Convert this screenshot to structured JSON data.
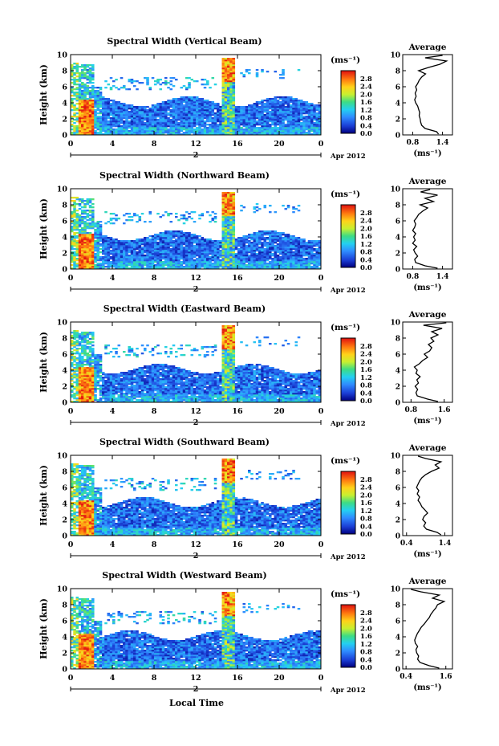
{
  "figure": {
    "xlabel": "Local Time",
    "date_label": "Apr 2012",
    "day_label": "2"
  },
  "chart_data": [
    {
      "type": "heatmap",
      "title": "Spectral Width (Vertical Beam)",
      "ylabel": "Height (km)",
      "x_ticks": [
        "0",
        "4",
        "8",
        "12",
        "16",
        "20",
        "0"
      ],
      "y_ticks": [
        "0",
        "2",
        "4",
        "6",
        "8",
        "10"
      ],
      "xlim": [
        0,
        24
      ],
      "ylim": [
        0,
        10
      ],
      "colorbar_unit": "(ms⁻¹)",
      "colorbar_ticks": [
        "0.0",
        "0.4",
        "0.8",
        "1.2",
        "1.6",
        "2.0",
        "2.4",
        "2.8"
      ],
      "colorbar_range": [
        0,
        3.2
      ],
      "avg": {
        "title": "Average",
        "xlabel": "(ms⁻¹)",
        "x_ticks": [
          "0.8",
          "1.4"
        ],
        "xlim": [
          0.6,
          1.6
        ],
        "y_ticks": [
          "0",
          "2",
          "4",
          "6",
          "8",
          "10"
        ],
        "ylim": [
          0,
          10
        ],
        "heights": [
          0.1,
          0.4,
          0.8,
          1.2,
          1.6,
          2.0,
          2.4,
          2.8,
          3.2,
          3.6,
          4.0,
          4.4,
          4.8,
          5.2,
          5.6,
          6.0,
          6.4,
          6.8,
          7.2,
          7.6,
          8.0,
          8.4,
          8.8,
          9.2,
          9.6,
          9.9
        ],
        "values": [
          1.32,
          1.28,
          1.05,
          0.98,
          0.96,
          0.95,
          0.93,
          0.94,
          0.92,
          0.9,
          0.86,
          0.84,
          0.87,
          0.85,
          0.88,
          0.86,
          0.9,
          0.93,
          0.98,
          1.06,
          0.92,
          1.12,
          1.35,
          1.48,
          1.05,
          1.4
        ]
      }
    },
    {
      "type": "heatmap",
      "title": "Spectral Width (Northward Beam)",
      "ylabel": "Height (km)",
      "x_ticks": [
        "0",
        "4",
        "8",
        "12",
        "16",
        "20",
        "0"
      ],
      "y_ticks": [
        "0",
        "2",
        "4",
        "6",
        "8",
        "10"
      ],
      "xlim": [
        0,
        24
      ],
      "ylim": [
        0,
        10
      ],
      "colorbar_unit": "(ms⁻¹)",
      "colorbar_ticks": [
        "0.0",
        "0.4",
        "0.8",
        "1.2",
        "1.6",
        "2.0",
        "2.4",
        "2.8"
      ],
      "colorbar_range": [
        0,
        3.2
      ],
      "avg": {
        "title": "Average",
        "xlabel": "(ms⁻¹)",
        "x_ticks": [
          "0.8",
          "1.4"
        ],
        "xlim": [
          0.6,
          1.6
        ],
        "y_ticks": [
          "0",
          "2",
          "4",
          "6",
          "8",
          "10"
        ],
        "ylim": [
          0,
          10
        ],
        "heights": [
          0.1,
          0.4,
          0.8,
          1.2,
          1.6,
          2.0,
          2.4,
          2.8,
          3.2,
          3.6,
          4.0,
          4.4,
          4.8,
          5.2,
          5.6,
          6.0,
          6.4,
          6.8,
          7.2,
          7.6,
          8.0,
          8.4,
          8.8,
          9.2,
          9.6,
          9.9
        ],
        "values": [
          1.3,
          1.05,
          0.86,
          0.84,
          0.9,
          0.85,
          0.82,
          0.88,
          0.8,
          0.85,
          0.82,
          0.86,
          0.8,
          0.84,
          0.86,
          0.83,
          0.88,
          0.92,
          1.0,
          1.1,
          0.95,
          1.22,
          1.05,
          1.3,
          0.96,
          1.15
        ]
      }
    },
    {
      "type": "heatmap",
      "title": "Spectral Width (Eastward Beam)",
      "ylabel": "Height (km)",
      "x_ticks": [
        "0",
        "4",
        "8",
        "12",
        "16",
        "20",
        "0"
      ],
      "y_ticks": [
        "0",
        "2",
        "4",
        "6",
        "8",
        "10"
      ],
      "xlim": [
        0,
        24
      ],
      "ylim": [
        0,
        10
      ],
      "colorbar_unit": "(ms⁻¹)",
      "colorbar_ticks": [
        "0.0",
        "0.4",
        "0.8",
        "1.2",
        "1.6",
        "2.0",
        "2.4",
        "2.8"
      ],
      "colorbar_range": [
        0,
        3.2
      ],
      "avg": {
        "title": "Average",
        "xlabel": "(ms⁻¹)",
        "x_ticks": [
          "0.8",
          "1.6"
        ],
        "xlim": [
          0.6,
          1.8
        ],
        "y_ticks": [
          "0",
          "2",
          "4",
          "6",
          "8",
          "10"
        ],
        "ylim": [
          0,
          10
        ],
        "heights": [
          0.1,
          0.4,
          0.8,
          1.2,
          1.6,
          2.0,
          2.4,
          2.8,
          3.2,
          3.6,
          4.0,
          4.4,
          4.8,
          5.2,
          5.6,
          6.0,
          6.4,
          6.8,
          7.2,
          7.6,
          8.0,
          8.4,
          8.8,
          9.2,
          9.6,
          9.9
        ],
        "values": [
          1.45,
          1.2,
          0.95,
          0.92,
          0.96,
          0.9,
          0.98,
          0.94,
          1.02,
          0.92,
          0.95,
          0.88,
          1.0,
          1.08,
          1.2,
          1.12,
          1.25,
          1.3,
          1.22,
          1.35,
          1.28,
          1.45,
          1.3,
          1.55,
          1.1,
          1.65
        ]
      }
    },
    {
      "type": "heatmap",
      "title": "Spectral Width (Southward Beam)",
      "ylabel": "Height (km)",
      "x_ticks": [
        "0",
        "4",
        "8",
        "12",
        "16",
        "20",
        "0"
      ],
      "y_ticks": [
        "0",
        "2",
        "4",
        "6",
        "8",
        "10"
      ],
      "xlim": [
        0,
        24
      ],
      "ylim": [
        0,
        10
      ],
      "colorbar_unit": "(ms⁻¹)",
      "colorbar_ticks": [
        "0.0",
        "0.4",
        "0.8",
        "1.2",
        "1.6",
        "2.0",
        "2.4",
        "2.8"
      ],
      "colorbar_range": [
        0,
        3.2
      ],
      "avg": {
        "title": "Average",
        "xlabel": "(ms⁻¹)",
        "x_ticks": [
          "0.4",
          "1.4"
        ],
        "xlim": [
          0.3,
          1.6
        ],
        "y_ticks": [
          "0",
          "2",
          "4",
          "6",
          "8",
          "10"
        ],
        "ylim": [
          0,
          10
        ],
        "heights": [
          0.1,
          0.4,
          0.8,
          1.2,
          1.6,
          2.0,
          2.4,
          2.8,
          3.2,
          3.6,
          4.0,
          4.4,
          4.8,
          5.2,
          5.6,
          6.0,
          6.4,
          6.8,
          7.2,
          7.6,
          8.0,
          8.4,
          8.8,
          9.2,
          9.6,
          9.9
        ],
        "values": [
          1.3,
          1.2,
          0.92,
          0.85,
          0.9,
          0.82,
          0.86,
          0.95,
          0.88,
          0.8,
          0.76,
          0.7,
          0.74,
          0.68,
          0.72,
          0.66,
          0.7,
          0.74,
          0.8,
          0.9,
          1.05,
          1.25,
          1.15,
          1.3,
          0.9,
          0.7
        ]
      }
    },
    {
      "type": "heatmap",
      "title": "Spectral Width (Westward Beam)",
      "ylabel": "Height (km)",
      "x_ticks": [
        "0",
        "4",
        "8",
        "12",
        "16",
        "20",
        "0"
      ],
      "y_ticks": [
        "0",
        "2",
        "4",
        "6",
        "8",
        "10"
      ],
      "xlim": [
        0,
        24
      ],
      "ylim": [
        0,
        10
      ],
      "colorbar_unit": "(ms⁻¹)",
      "colorbar_ticks": [
        "0.0",
        "0.4",
        "0.8",
        "1.2",
        "1.6",
        "2.0",
        "2.4",
        "2.8"
      ],
      "colorbar_range": [
        0,
        3.2
      ],
      "avg": {
        "title": "Average",
        "xlabel": "(ms⁻¹)",
        "x_ticks": [
          "0.4",
          "1.6"
        ],
        "xlim": [
          0.3,
          1.8
        ],
        "y_ticks": [
          "0",
          "2",
          "4",
          "6",
          "8",
          "10"
        ],
        "ylim": [
          0,
          10
        ],
        "heights": [
          0.1,
          0.4,
          0.8,
          1.2,
          1.6,
          2.0,
          2.4,
          2.8,
          3.2,
          3.6,
          4.0,
          4.4,
          4.8,
          5.2,
          5.6,
          6.0,
          6.4,
          6.8,
          7.2,
          7.6,
          8.0,
          8.4,
          8.8,
          9.2,
          9.6,
          9.9
        ],
        "values": [
          1.4,
          1.1,
          0.82,
          0.75,
          0.78,
          0.72,
          0.7,
          0.75,
          0.68,
          0.66,
          0.7,
          0.74,
          0.8,
          0.86,
          0.95,
          1.02,
          1.1,
          1.15,
          1.22,
          1.3,
          1.35,
          1.55,
          1.2,
          1.4,
          0.85,
          0.55
        ]
      }
    }
  ]
}
